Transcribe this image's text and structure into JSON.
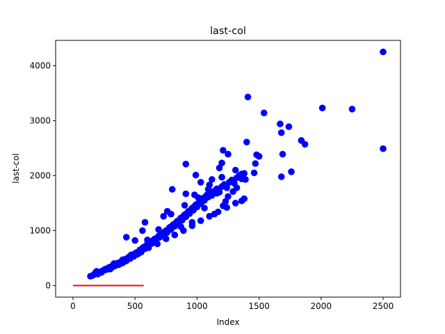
{
  "chart_data": {
    "type": "scatter",
    "title": "last-col",
    "xlabel": "Index",
    "ylabel": "last-col",
    "xlim": [
      -140,
      2640
    ],
    "ylim": [
      -210,
      4460
    ],
    "xticks": [
      0,
      500,
      1000,
      1500,
      2000,
      2500
    ],
    "yticks": [
      0,
      1000,
      2000,
      3000,
      4000
    ],
    "grid": false,
    "colors": {
      "points": "#0000ff",
      "line": "#ff0000",
      "axes": "#000000"
    },
    "series": [
      {
        "type": "scatter",
        "points": [
          [
            140,
            170
          ],
          [
            155,
            180
          ],
          [
            170,
            200
          ],
          [
            180,
            230
          ],
          [
            190,
            260
          ],
          [
            200,
            210
          ],
          [
            210,
            235
          ],
          [
            220,
            250
          ],
          [
            230,
            240
          ],
          [
            240,
            270
          ],
          [
            250,
            280
          ],
          [
            260,
            300
          ],
          [
            270,
            290
          ],
          [
            280,
            310
          ],
          [
            290,
            330
          ],
          [
            300,
            300
          ],
          [
            310,
            350
          ],
          [
            320,
            340
          ],
          [
            330,
            370
          ],
          [
            340,
            360
          ],
          [
            350,
            390
          ],
          [
            360,
            410
          ],
          [
            370,
            380
          ],
          [
            380,
            420
          ],
          [
            390,
            440
          ],
          [
            400,
            410
          ],
          [
            410,
            460
          ],
          [
            420,
            480
          ],
          [
            430,
            450
          ],
          [
            440,
            500
          ],
          [
            450,
            520
          ],
          [
            460,
            490
          ],
          [
            470,
            540
          ],
          [
            480,
            560
          ],
          [
            490,
            530
          ],
          [
            500,
            580
          ],
          [
            510,
            600
          ],
          [
            520,
            570
          ],
          [
            530,
            620
          ],
          [
            540,
            650
          ],
          [
            550,
            610
          ],
          [
            560,
            680
          ],
          [
            570,
            700
          ],
          [
            580,
            670
          ],
          [
            590,
            720
          ],
          [
            600,
            760
          ],
          [
            610,
            730
          ],
          [
            620,
            780
          ],
          [
            630,
            800
          ],
          [
            640,
            770
          ],
          [
            650,
            830
          ],
          [
            660,
            850
          ],
          [
            670,
            820
          ],
          [
            680,
            870
          ],
          [
            690,
            900
          ],
          [
            700,
            880
          ],
          [
            710,
            920
          ],
          [
            720,
            950
          ],
          [
            730,
            910
          ],
          [
            740,
            980
          ],
          [
            750,
            1000
          ],
          [
            760,
            970
          ],
          [
            770,
            1030
          ],
          [
            780,
            1060
          ],
          [
            790,
            1020
          ],
          [
            800,
            1090
          ],
          [
            810,
            1110
          ],
          [
            820,
            1080
          ],
          [
            830,
            1140
          ],
          [
            840,
            1170
          ],
          [
            850,
            1130
          ],
          [
            860,
            1200
          ],
          [
            870,
            1230
          ],
          [
            880,
            1190
          ],
          [
            890,
            1260
          ],
          [
            900,
            1290
          ],
          [
            910,
            1250
          ],
          [
            920,
            1320
          ],
          [
            930,
            1350
          ],
          [
            940,
            1310
          ],
          [
            950,
            1380
          ],
          [
            960,
            1410
          ],
          [
            970,
            1370
          ],
          [
            980,
            1440
          ],
          [
            990,
            1470
          ],
          [
            1000,
            1430
          ],
          [
            1010,
            1500
          ],
          [
            1020,
            1530
          ],
          [
            1030,
            1490
          ],
          [
            1040,
            1560
          ],
          [
            1050,
            1590
          ],
          [
            1060,
            1550
          ],
          [
            1070,
            1620
          ],
          [
            1080,
            1650
          ],
          [
            1090,
            1610
          ],
          [
            1100,
            1680
          ],
          [
            1120,
            1640
          ],
          [
            1140,
            1720
          ],
          [
            1160,
            1760
          ],
          [
            1180,
            1700
          ],
          [
            1200,
            1800
          ],
          [
            1220,
            1840
          ],
          [
            1240,
            1780
          ],
          [
            1260,
            1880
          ],
          [
            1280,
            1920
          ],
          [
            1300,
            1860
          ],
          [
            1320,
            1960
          ],
          [
            1340,
            2000
          ],
          [
            1360,
            1940
          ],
          [
            1380,
            2040
          ],
          [
            330,
            400
          ],
          [
            400,
            470
          ],
          [
            470,
            560
          ],
          [
            540,
            600
          ],
          [
            610,
            690
          ],
          [
            680,
            760
          ],
          [
            750,
            850
          ],
          [
            820,
            920
          ],
          [
            890,
            1000
          ],
          [
            960,
            1090
          ],
          [
            1030,
            1180
          ],
          [
            1100,
            1260
          ],
          [
            1170,
            1340
          ],
          [
            1240,
            1420
          ],
          [
            1310,
            1500
          ],
          [
            1380,
            1580
          ],
          [
            430,
            880
          ],
          [
            500,
            820
          ],
          [
            560,
            1000
          ],
          [
            580,
            1150
          ],
          [
            600,
            830
          ],
          [
            690,
            1020
          ],
          [
            730,
            1260
          ],
          [
            760,
            1350
          ],
          [
            790,
            1300
          ],
          [
            870,
            1070
          ],
          [
            900,
            1460
          ],
          [
            910,
            1670
          ],
          [
            960,
            1150
          ],
          [
            980,
            1650
          ],
          [
            1010,
            1600
          ],
          [
            1030,
            1880
          ],
          [
            1060,
            1410
          ],
          [
            1090,
            1750
          ],
          [
            1140,
            1300
          ],
          [
            1160,
            1680
          ],
          [
            1180,
            2140
          ],
          [
            1200,
            1970
          ],
          [
            1210,
            1450
          ],
          [
            1230,
            1530
          ],
          [
            1250,
            1620
          ],
          [
            1290,
            1710
          ],
          [
            1320,
            1780
          ],
          [
            1360,
            1540
          ],
          [
            1390,
            1930
          ],
          [
            1460,
            2050
          ],
          [
            800,
            1750
          ],
          [
            910,
            2210
          ],
          [
            990,
            2010
          ],
          [
            1100,
            1830
          ],
          [
            1120,
            1930
          ],
          [
            1200,
            2230
          ],
          [
            1210,
            2460
          ],
          [
            1250,
            2390
          ],
          [
            1310,
            2100
          ],
          [
            1360,
            2030
          ],
          [
            1400,
            2610
          ],
          [
            1470,
            2220
          ],
          [
            1480,
            2380
          ],
          [
            1500,
            2350
          ],
          [
            1410,
            3430
          ],
          [
            1540,
            3140
          ],
          [
            1670,
            2940
          ],
          [
            1680,
            2780
          ],
          [
            1680,
            1980
          ],
          [
            1690,
            2390
          ],
          [
            1740,
            2890
          ],
          [
            1760,
            2070
          ],
          [
            1840,
            2640
          ],
          [
            1870,
            2570
          ],
          [
            2010,
            3230
          ],
          [
            2250,
            3210
          ],
          [
            2500,
            4250
          ],
          [
            2500,
            2490
          ]
        ]
      },
      {
        "type": "line",
        "x": [
          0,
          570
        ],
        "y": [
          0,
          0
        ]
      }
    ]
  }
}
